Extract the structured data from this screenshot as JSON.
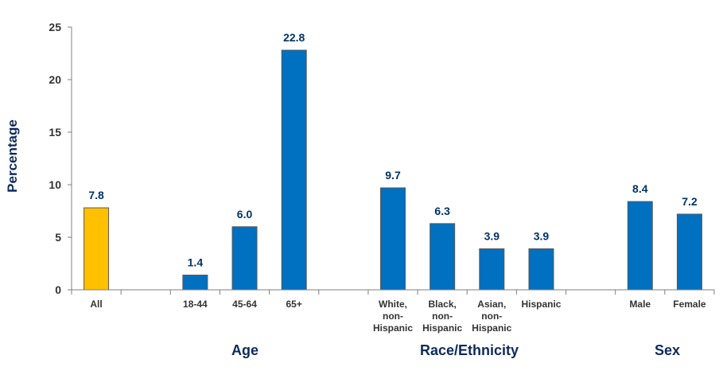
{
  "chart_data": {
    "type": "bar",
    "ylabel": "Percentage",
    "ylim": [
      0,
      25
    ],
    "yticks": [
      0,
      5,
      10,
      15,
      20,
      25
    ],
    "grid": false,
    "categories": [
      {
        "lines": [
          "All"
        ],
        "value": 7.8,
        "label": "7.8",
        "color": "#FFC000"
      },
      {
        "lines": [
          ""
        ],
        "value": null,
        "label": ""
      },
      {
        "lines": [
          "18-44"
        ],
        "value": 1.4,
        "label": "1.4",
        "color": "#0070C0"
      },
      {
        "lines": [
          "45-64"
        ],
        "value": 6.0,
        "label": "6.0",
        "color": "#0070C0"
      },
      {
        "lines": [
          "65+"
        ],
        "value": 22.8,
        "label": "22.8",
        "color": "#0070C0"
      },
      {
        "lines": [
          ""
        ],
        "value": null,
        "label": ""
      },
      {
        "lines": [
          "White,",
          "non-",
          "Hispanic"
        ],
        "value": 9.7,
        "label": "9.7",
        "color": "#0070C0"
      },
      {
        "lines": [
          "Black,",
          "non-",
          "Hispanic"
        ],
        "value": 6.3,
        "label": "6.3",
        "color": "#0070C0"
      },
      {
        "lines": [
          "Asian,",
          "non-",
          "Hispanic"
        ],
        "value": 3.9,
        "label": "3.9",
        "color": "#0070C0"
      },
      {
        "lines": [
          "Hispanic"
        ],
        "value": 3.9,
        "label": "3.9",
        "color": "#0070C0"
      },
      {
        "lines": [
          ""
        ],
        "value": null,
        "label": ""
      },
      {
        "lines": [
          "Male"
        ],
        "value": 8.4,
        "label": "8.4",
        "color": "#0070C0"
      },
      {
        "lines": [
          "Female"
        ],
        "value": 7.2,
        "label": "7.2",
        "color": "#0070C0"
      }
    ],
    "groups": [
      {
        "label": "Age",
        "categories": [
          "18-44",
          "45-64",
          "65+"
        ]
      },
      {
        "label": "Race/Ethnicity",
        "categories": [
          "White, non-Hispanic",
          "Black, non-Hispanic",
          "Asian, non-Hispanic",
          "Hispanic"
        ]
      },
      {
        "label": "Sex",
        "categories": [
          "Male",
          "Female"
        ]
      }
    ]
  }
}
